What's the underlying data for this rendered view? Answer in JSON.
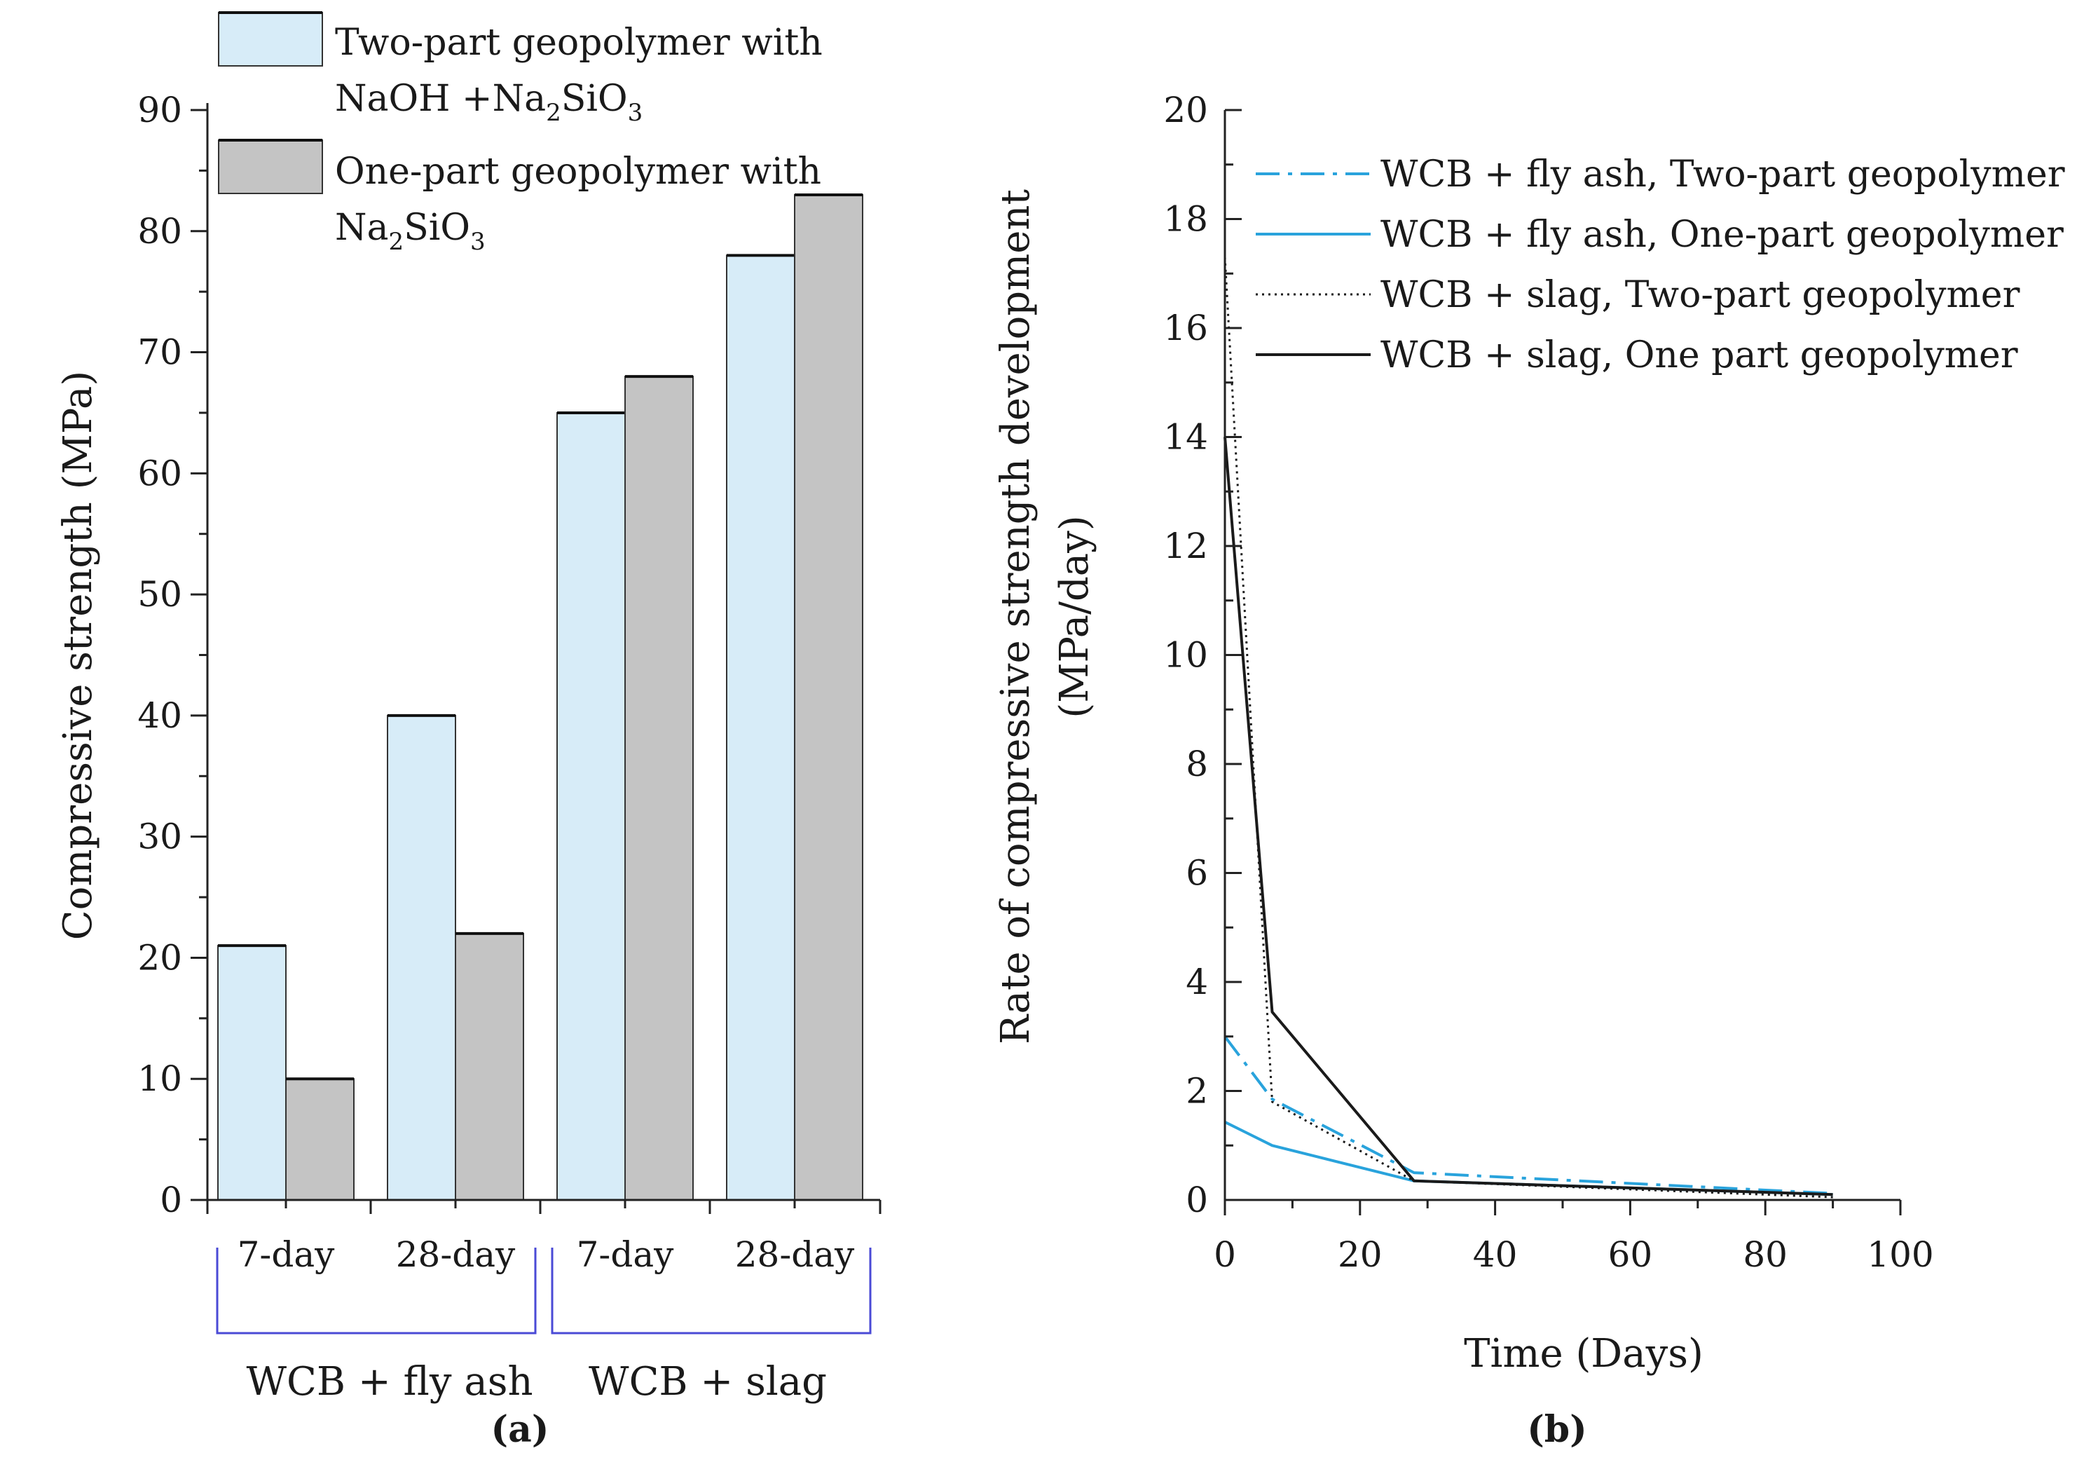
{
  "chart_data": [
    {
      "panel": "(a)",
      "type": "bar",
      "categories": [
        "7-day",
        "28-day",
        "7-day",
        "28-day"
      ],
      "groups": [
        {
          "label": "WCB + fly ash",
          "categories": [
            "7-day",
            "28-day"
          ]
        },
        {
          "label": "WCB + slag",
          "categories": [
            "7-day",
            "28-day"
          ]
        }
      ],
      "series": [
        {
          "name": "Two-part geopolymer with NaOH +Na2SiO3",
          "legend_line1": "Two-part geopolymer with",
          "legend_line2": {
            "t1": "NaOH +Na",
            "s1": "2",
            "t2": "SiO",
            "s2": "3"
          },
          "color": "#d7ecf8",
          "values": [
            21,
            40,
            65,
            78
          ]
        },
        {
          "name": "One-part geopolymer with Na2SiO3",
          "legend_line1": "One-part geopolymer with",
          "legend_line2": {
            "t1": "Na",
            "s1": "2",
            "t2": "SiO",
            "s2": "3"
          },
          "color": "#c4c4c4",
          "values": [
            10,
            22,
            68,
            83
          ]
        }
      ],
      "ylabel": "Compressive strength (MPa)",
      "xlabel": "",
      "ylim": [
        0,
        90
      ],
      "yticks": [
        "0",
        "10",
        "20",
        "30",
        "40",
        "50",
        "60",
        "70",
        "80",
        "90"
      ],
      "grid": false,
      "legend": "top-left"
    },
    {
      "panel": "(b)",
      "type": "line",
      "xlabel": "Time (Days)",
      "ylabel_line1": "Rate of compressive strength development",
      "ylabel_line2": "(MPa/day)",
      "xlim": [
        0,
        100
      ],
      "ylim": [
        0,
        20
      ],
      "xticks": [
        "0",
        "20",
        "40",
        "60",
        "80",
        "100"
      ],
      "yticks": [
        "0",
        "2",
        "4",
        "6",
        "8",
        "10",
        "12",
        "14",
        "16",
        "18",
        "20"
      ],
      "grid": false,
      "legend": "top-right",
      "series": [
        {
          "name": "WCB + fly ash, Two-part geopolymer",
          "color": "#29a3dc",
          "style": "dashdot",
          "x": [
            0,
            7,
            28,
            90
          ],
          "y": [
            3.0,
            1.85,
            0.5,
            0.12
          ]
        },
        {
          "name": "WCB + fly ash, One-part geopolymer",
          "color": "#29a3dc",
          "style": "solid",
          "x": [
            0,
            7,
            28,
            90
          ],
          "y": [
            1.43,
            1.0,
            0.35,
            0.1
          ]
        },
        {
          "name": "WCB + slag, Two-part geopolymer",
          "color": "#1a1a1a",
          "style": "dotted",
          "x": [
            0,
            7,
            28,
            90
          ],
          "y": [
            17.3,
            1.8,
            0.35,
            0.05
          ]
        },
        {
          "name": "WCB + slag, One part geopolymer",
          "color": "#1a1a1a",
          "style": "solid",
          "x": [
            0,
            7,
            28,
            90
          ],
          "y": [
            14.0,
            3.45,
            0.35,
            0.1
          ]
        }
      ]
    }
  ]
}
